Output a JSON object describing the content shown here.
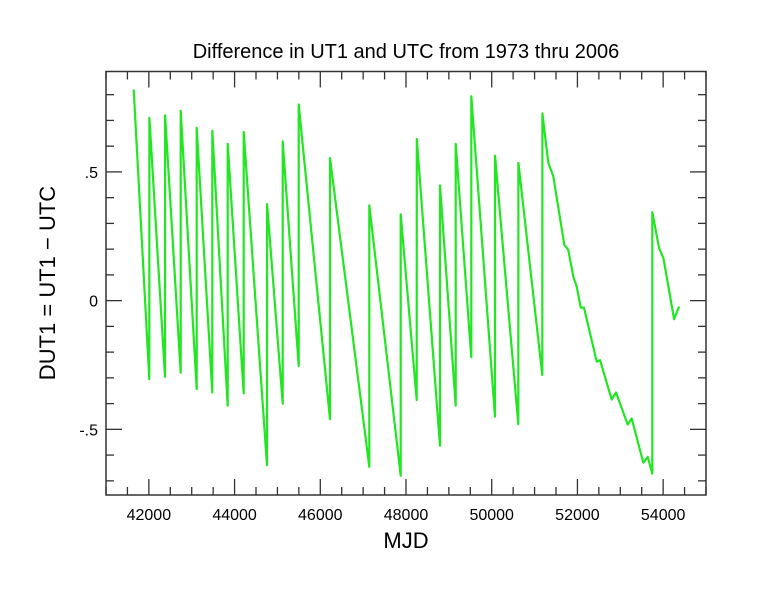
{
  "chart_data": {
    "type": "line",
    "title": "Difference in UT1 and UTC from 1973 thru 2006",
    "xlabel": "MJD",
    "ylabel": "DUT1 = UT1 − UTC",
    "xlim": [
      41000,
      55000
    ],
    "ylim": [
      -0.755,
      0.89
    ],
    "xticks": [
      42000,
      44000,
      46000,
      48000,
      50000,
      52000,
      54000
    ],
    "xtick_labels": [
      "42000",
      "44000",
      "46000",
      "48000",
      "50000",
      "52000",
      "54000"
    ],
    "x_minor_step": 500,
    "yticks": [
      -0.5,
      0,
      0.5
    ],
    "ytick_labels": [
      "-.5",
      "0",
      ".5"
    ],
    "y_minor_step": 0.1,
    "grid": false,
    "line_color": "#22e622",
    "series": [
      {
        "points": [
          [
            41646,
            0.82
          ],
          [
            42011,
            -0.305
          ],
          [
            42012,
            0.71
          ],
          [
            42377,
            -0.296
          ],
          [
            42378,
            0.72
          ],
          [
            42743,
            -0.28
          ],
          [
            42744,
            0.737
          ],
          [
            43116,
            -0.344
          ],
          [
            43117,
            0.671
          ],
          [
            43480,
            -0.357
          ],
          [
            43481,
            0.66
          ],
          [
            43839,
            -0.408
          ],
          [
            43840,
            0.609
          ],
          [
            44213,
            -0.36
          ],
          [
            44214,
            0.655
          ],
          [
            44757,
            -0.639
          ],
          [
            44758,
            0.375
          ],
          [
            45123,
            -0.4
          ],
          [
            45124,
            0.619
          ],
          [
            45496,
            -0.254
          ],
          [
            45497,
            0.762
          ],
          [
            46226,
            -0.46
          ],
          [
            46227,
            0.554
          ],
          [
            47143,
            -0.646
          ],
          [
            47144,
            0.37
          ],
          [
            47876,
            -0.68
          ],
          [
            47877,
            0.335
          ],
          [
            48250,
            -0.386
          ],
          [
            48251,
            0.628
          ],
          [
            48793,
            -0.564
          ],
          [
            48794,
            0.447
          ],
          [
            49159,
            -0.408
          ],
          [
            49160,
            0.609
          ],
          [
            49523,
            -0.22
          ],
          [
            49524,
            0.794
          ],
          [
            50076,
            -0.451
          ],
          [
            50077,
            0.563
          ],
          [
            50621,
            -0.48
          ],
          [
            50622,
            0.535
          ],
          [
            51181,
            -0.289
          ],
          [
            51182,
            0.727
          ],
          [
            51321,
            0.535
          ],
          [
            51437,
            0.483
          ],
          [
            51694,
            0.217
          ],
          [
            51788,
            0.197
          ],
          [
            51904,
            0.093
          ],
          [
            51983,
            0.054
          ],
          [
            52076,
            -0.027
          ],
          [
            52153,
            -0.027
          ],
          [
            52449,
            -0.237
          ],
          [
            52527,
            -0.231
          ],
          [
            52800,
            -0.384
          ],
          [
            52900,
            -0.357
          ],
          [
            53173,
            -0.481
          ],
          [
            53266,
            -0.458
          ],
          [
            53537,
            -0.629
          ],
          [
            53640,
            -0.607
          ],
          [
            53747,
            -0.672
          ],
          [
            53748,
            0.344
          ],
          [
            53905,
            0.204
          ],
          [
            54006,
            0.165
          ],
          [
            54255,
            -0.072
          ],
          [
            54372,
            -0.023
          ]
        ]
      }
    ]
  }
}
